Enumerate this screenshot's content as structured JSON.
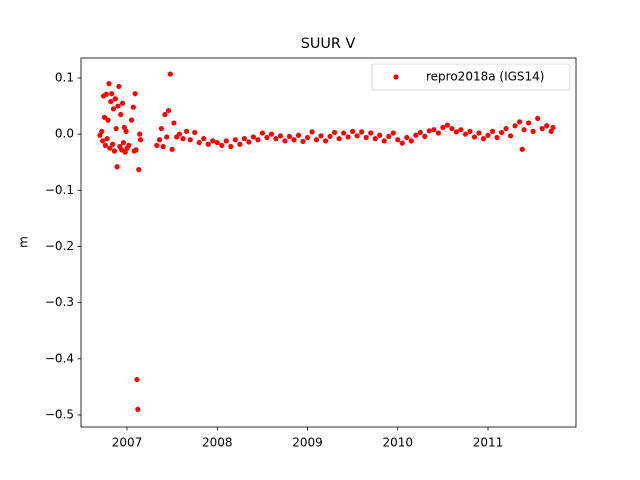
{
  "chart_data": {
    "type": "scatter",
    "title": "SUUR V",
    "y_label": "m",
    "x": [
      2006.7,
      2006.72,
      2006.73,
      2006.74,
      2006.75,
      2006.76,
      2006.77,
      2006.78,
      2006.79,
      2006.8,
      2006.81,
      2006.82,
      2006.83,
      2006.84,
      2006.85,
      2006.86,
      2006.87,
      2006.88,
      2006.89,
      2006.9,
      2006.91,
      2006.92,
      2006.93,
      2006.94,
      2006.95,
      2006.96,
      2006.97,
      2006.98,
      2006.99,
      2007.0,
      2007.02,
      2007.05,
      2007.07,
      2007.08,
      2007.09,
      2007.1,
      2007.11,
      2007.12,
      2007.13,
      2007.14,
      2007.15,
      2007.33,
      2007.36,
      2007.38,
      2007.4,
      2007.42,
      2007.44,
      2007.46,
      2007.48,
      2007.5,
      2007.52,
      2007.55,
      2007.58,
      2007.62,
      2007.66,
      2007.7,
      2007.75,
      2007.8,
      2007.85,
      2007.9,
      2007.95,
      2008.0,
      2008.05,
      2008.1,
      2008.15,
      2008.2,
      2008.25,
      2008.3,
      2008.35,
      2008.4,
      2008.45,
      2008.5,
      2008.55,
      2008.6,
      2008.65,
      2008.7,
      2008.75,
      2008.8,
      2008.85,
      2008.9,
      2008.95,
      2009.0,
      2009.05,
      2009.1,
      2009.15,
      2009.2,
      2009.25,
      2009.3,
      2009.35,
      2009.4,
      2009.45,
      2009.5,
      2009.55,
      2009.6,
      2009.65,
      2009.7,
      2009.75,
      2009.8,
      2009.85,
      2009.9,
      2009.95,
      2010.0,
      2010.05,
      2010.1,
      2010.15,
      2010.2,
      2010.25,
      2010.3,
      2010.35,
      2010.4,
      2010.45,
      2010.5,
      2010.55,
      2010.6,
      2010.65,
      2010.7,
      2010.75,
      2010.8,
      2010.85,
      2010.9,
      2010.95,
      2011.0,
      2011.05,
      2011.1,
      2011.15,
      2011.2,
      2011.25,
      2011.3,
      2011.35,
      2011.38,
      2011.4,
      2011.45,
      2011.5,
      2011.55,
      2011.6,
      2011.65,
      2011.7,
      2011.72
    ],
    "series": [
      {
        "name": "repro2018a (IGS14)",
        "color": "#ff0000",
        "values": [
          -0.002,
          0.005,
          -0.012,
          0.068,
          0.03,
          -0.02,
          0.071,
          -0.008,
          0.025,
          0.09,
          -0.025,
          0.058,
          0.072,
          -0.018,
          0.045,
          -0.03,
          0.063,
          0.01,
          -0.058,
          0.05,
          0.085,
          -0.022,
          0.035,
          -0.028,
          0.055,
          -0.015,
          0.012,
          -0.032,
          0.005,
          -0.025,
          -0.02,
          0.025,
          0.048,
          -0.03,
          0.072,
          -0.028,
          -0.437,
          -0.49,
          -0.063,
          0.0,
          -0.01,
          -0.02,
          -0.01,
          0.01,
          -0.022,
          0.035,
          -0.005,
          0.042,
          0.107,
          -0.027,
          0.02,
          -0.005,
          0.0,
          -0.008,
          0.005,
          -0.01,
          0.003,
          -0.015,
          -0.008,
          -0.018,
          -0.012,
          -0.015,
          -0.02,
          -0.012,
          -0.022,
          -0.01,
          -0.018,
          -0.008,
          -0.014,
          -0.005,
          -0.01,
          0.002,
          -0.006,
          0.0,
          -0.008,
          -0.003,
          -0.012,
          -0.004,
          -0.01,
          -0.002,
          -0.013,
          -0.006,
          0.004,
          -0.01,
          -0.003,
          -0.012,
          -0.004,
          0.003,
          -0.008,
          0.002,
          -0.005,
          0.005,
          -0.003,
          0.004,
          -0.006,
          0.002,
          -0.008,
          -0.002,
          -0.012,
          -0.004,
          0.002,
          -0.01,
          -0.016,
          -0.006,
          -0.012,
          -0.002,
          0.003,
          -0.004,
          0.006,
          0.008,
          0.002,
          0.012,
          0.016,
          0.01,
          0.004,
          0.008,
          0.0,
          0.005,
          -0.005,
          0.002,
          -0.008,
          -0.002,
          0.005,
          -0.006,
          0.003,
          0.01,
          -0.003,
          0.015,
          0.022,
          -0.027,
          0.008,
          0.02,
          0.005,
          0.028,
          0.01,
          0.015,
          0.005,
          0.012
        ]
      }
    ],
    "xlim": [
      2006.49,
      2011.975
    ],
    "xticks": [
      2007,
      2008,
      2009,
      2010,
      2011
    ],
    "ylim": [
      -0.5214,
      0.1356
    ],
    "yticks": [
      {
        "value": -0.5,
        "label": "−0.5"
      },
      {
        "value": -0.4,
        "label": "−0.4"
      },
      {
        "value": -0.3,
        "label": "−0.3"
      },
      {
        "value": -0.2,
        "label": "−0.2"
      },
      {
        "value": -0.1,
        "label": "−0.1"
      },
      {
        "value": 0.0,
        "label": "0.0"
      },
      0.1
    ],
    "grid": false,
    "legend": "upper right"
  }
}
